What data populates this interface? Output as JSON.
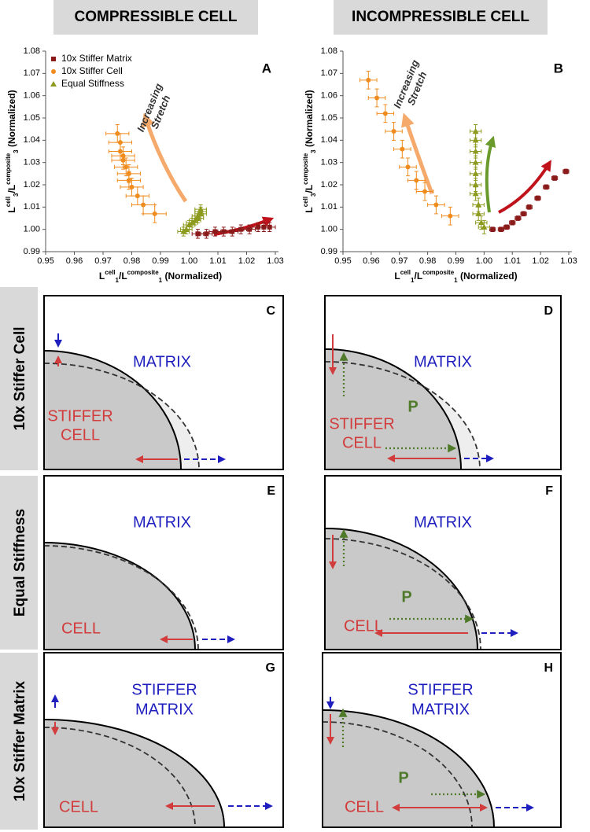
{
  "column_headers": [
    "COMPRESSIBLE CELL",
    "INCOMPRESSIBLE CELL"
  ],
  "chart_data": [
    {
      "type": "scatter",
      "panel_label": "A",
      "legend": "upper left",
      "annotation": [
        "Increasing",
        "Stretch"
      ],
      "x_label": [
        "L",
        "cell",
        "1",
        "/L",
        "composite",
        "1",
        " (Normalized)"
      ],
      "y_label": [
        "L",
        "cell",
        "3",
        "/L",
        "composite",
        "3",
        " (Normalized)"
      ],
      "xlim": [
        0.95,
        1.03
      ],
      "ylim": [
        0.99,
        1.08
      ],
      "xticks": [
        0.95,
        0.96,
        0.97,
        0.98,
        0.99,
        {
          "value": 1,
          "label": "1.00"
        },
        1.01,
        1.02,
        1.03
      ],
      "yticks": [
        0.99,
        {
          "value": 1,
          "label": "1.00"
        },
        1.01,
        1.02,
        1.03,
        1.04,
        1.05,
        1.06,
        1.07,
        1.08
      ],
      "series": [
        {
          "name": "10x Stiffer Matrix",
          "color": "#8b1a1a",
          "marker": "square",
          "xerr": 0.002,
          "yerr": 0.002,
          "x": [
            1.003,
            1.006,
            1.009,
            1.012,
            1.015,
            1.018,
            1.021,
            1.024,
            1.026,
            1.028
          ],
          "values": [
            0.998,
            0.998,
            0.999,
            0.999,
            0.999,
            1.0,
            1.0,
            1.001,
            1.001,
            1.001
          ]
        },
        {
          "name": "10x Stiffer Cell",
          "color": "#f08c1e",
          "marker": "circle",
          "xerr": 0.004,
          "yerr": 0.004,
          "x": [
            0.975,
            0.976,
            0.976,
            0.977,
            0.977,
            0.978,
            0.979,
            0.979,
            0.98,
            0.982,
            0.984,
            0.988
          ],
          "values": [
            1.043,
            1.039,
            1.035,
            1.033,
            1.031,
            1.028,
            1.025,
            1.022,
            1.019,
            1.015,
            1.011,
            1.007
          ]
        },
        {
          "name": "Equal Stiffness",
          "color": "#8c9a1e",
          "marker": "triangle",
          "xerr": 0.002,
          "yerr": 0.002,
          "x": [
            0.998,
            0.999,
            1.0,
            1.001,
            1.002,
            1.003,
            1.003,
            1.004,
            1.004,
            1.004
          ],
          "values": [
            0.999,
            1.0,
            1.002,
            1.003,
            1.004,
            1.005,
            1.006,
            1.007,
            1.008,
            1.009
          ]
        }
      ]
    },
    {
      "type": "scatter",
      "panel_label": "B",
      "annotation": [
        "Increasing",
        "Stretch"
      ],
      "x_label": [
        "L",
        "cell",
        "1",
        "/L",
        "composite",
        "1",
        " (Normalized)"
      ],
      "y_label": [
        "L",
        "cell",
        "3",
        "/L",
        "composite",
        "3",
        " (Normalized)"
      ],
      "xlim": [
        0.95,
        1.03
      ],
      "ylim": [
        0.99,
        1.08
      ],
      "xticks": [
        0.95,
        0.96,
        0.97,
        0.98,
        0.99,
        {
          "value": 1,
          "label": "1.00"
        },
        1.01,
        1.02,
        1.03
      ],
      "yticks": [
        0.99,
        {
          "value": 1,
          "label": "1.00"
        },
        1.01,
        1.02,
        1.03,
        1.04,
        1.05,
        1.06,
        1.07,
        1.08
      ],
      "series": [
        {
          "color": "#8b1a1a",
          "marker": "square",
          "xerr": 0.001,
          "yerr": 0.001,
          "x": [
            1.003,
            1.006,
            1.008,
            1.01,
            1.012,
            1.014,
            1.016,
            1.019,
            1.022,
            1.025,
            1.029
          ],
          "values": [
            1.0,
            1.0,
            1.001,
            1.003,
            1.005,
            1.007,
            1.01,
            1.014,
            1.019,
            1.023,
            1.026
          ]
        },
        {
          "color": "#f08c1e",
          "marker": "circle",
          "xerr": 0.003,
          "yerr": 0.004,
          "x": [
            0.959,
            0.962,
            0.965,
            0.968,
            0.971,
            0.973,
            0.976,
            0.979,
            0.983,
            0.988
          ],
          "values": [
            1.067,
            1.059,
            1.052,
            1.044,
            1.036,
            1.028,
            1.022,
            1.017,
            1.011,
            1.006
          ]
        },
        {
          "color": "#8c9a1e",
          "marker": "triangle",
          "xerr": 0.002,
          "yerr": 0.003,
          "x": [
            0.997,
            0.997,
            0.997,
            0.997,
            0.997,
            0.997,
            0.997,
            0.998,
            0.998,
            0.999,
            1.0
          ],
          "values": [
            1.044,
            1.04,
            1.035,
            1.03,
            1.025,
            1.02,
            1.016,
            1.011,
            1.007,
            1.003,
            1.001
          ]
        }
      ]
    }
  ],
  "row_labels": [
    "10x Stiffer Cell",
    "Equal Stiffness",
    "10x Stiffer Matrix"
  ],
  "panels": [
    {
      "letter": "C",
      "matrix_label": [
        "MATRIX"
      ],
      "cell_label": [
        "STIFFER",
        "CELL"
      ]
    },
    {
      "letter": "D",
      "matrix_label": [
        "MATRIX"
      ],
      "cell_label": [
        "STIFFER",
        "CELL"
      ],
      "p_label": "P"
    },
    {
      "letter": "E",
      "matrix_label": [
        "MATRIX"
      ],
      "cell_label": [
        "CELL"
      ]
    },
    {
      "letter": "F",
      "matrix_label": [
        "MATRIX"
      ],
      "cell_label": [
        "CELL"
      ],
      "p_label": "P"
    },
    {
      "letter": "G",
      "matrix_label": [
        "STIFFER",
        "MATRIX"
      ],
      "cell_label": [
        "CELL"
      ]
    },
    {
      "letter": "H",
      "matrix_label": [
        "STIFFER",
        "MATRIX"
      ],
      "cell_label": [
        "CELL"
      ],
      "p_label": "P"
    }
  ]
}
